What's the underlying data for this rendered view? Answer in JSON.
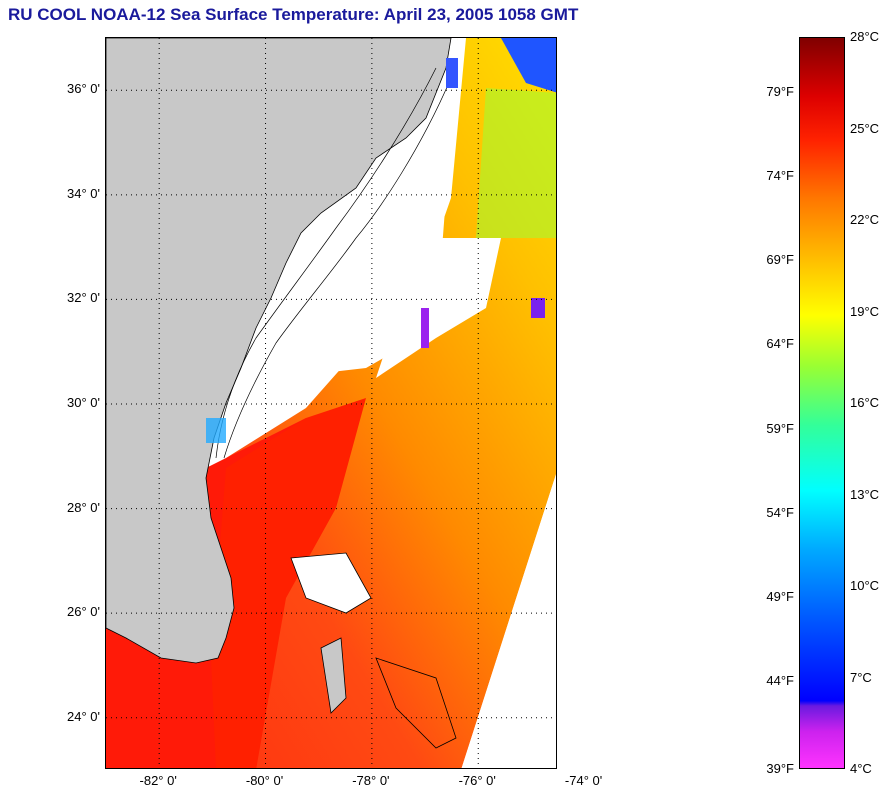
{
  "title": "RU COOL  NOAA-12  Sea Surface Temperature:  April 23, 2005 1058 GMT",
  "map": {
    "lat_range": [
      23,
      37
    ],
    "lon_range": [
      -83,
      -74.5
    ],
    "lat_ticks": [
      {
        "label": "36° 0'",
        "value": 36
      },
      {
        "label": "34° 0'",
        "value": 34
      },
      {
        "label": "32° 0'",
        "value": 32
      },
      {
        "label": "30° 0'",
        "value": 30
      },
      {
        "label": "28° 0'",
        "value": 28
      },
      {
        "label": "26° 0'",
        "value": 26
      },
      {
        "label": "24° 0'",
        "value": 24
      }
    ],
    "lon_ticks": [
      {
        "label": "-82° 0'",
        "value": -82
      },
      {
        "label": "-80° 0'",
        "value": -80
      },
      {
        "label": "-78° 0'",
        "value": -78
      },
      {
        "label": "-76° 0'",
        "value": -76
      },
      {
        "label": "-74° 0'",
        "value": -74
      }
    ],
    "grid": "dotted",
    "colors": {
      "land": "#c8c8c8",
      "cloud_no_data": "#ffffff",
      "warm_water": "#ff2a10",
      "mid_water": "#ff8800",
      "cool_water": "#ffd000"
    }
  },
  "colorbar": {
    "celsius_range": [
      4,
      28
    ],
    "celsius_labels": [
      "28°C",
      "25°C",
      "22°C",
      "19°C",
      "16°C",
      "13°C",
      "10°C",
      "7°C",
      "4°C"
    ],
    "fahrenheit_labels": [
      "79°F",
      "74°F",
      "69°F",
      "64°F",
      "59°F",
      "54°F",
      "49°F",
      "44°F",
      "39°F"
    ]
  }
}
